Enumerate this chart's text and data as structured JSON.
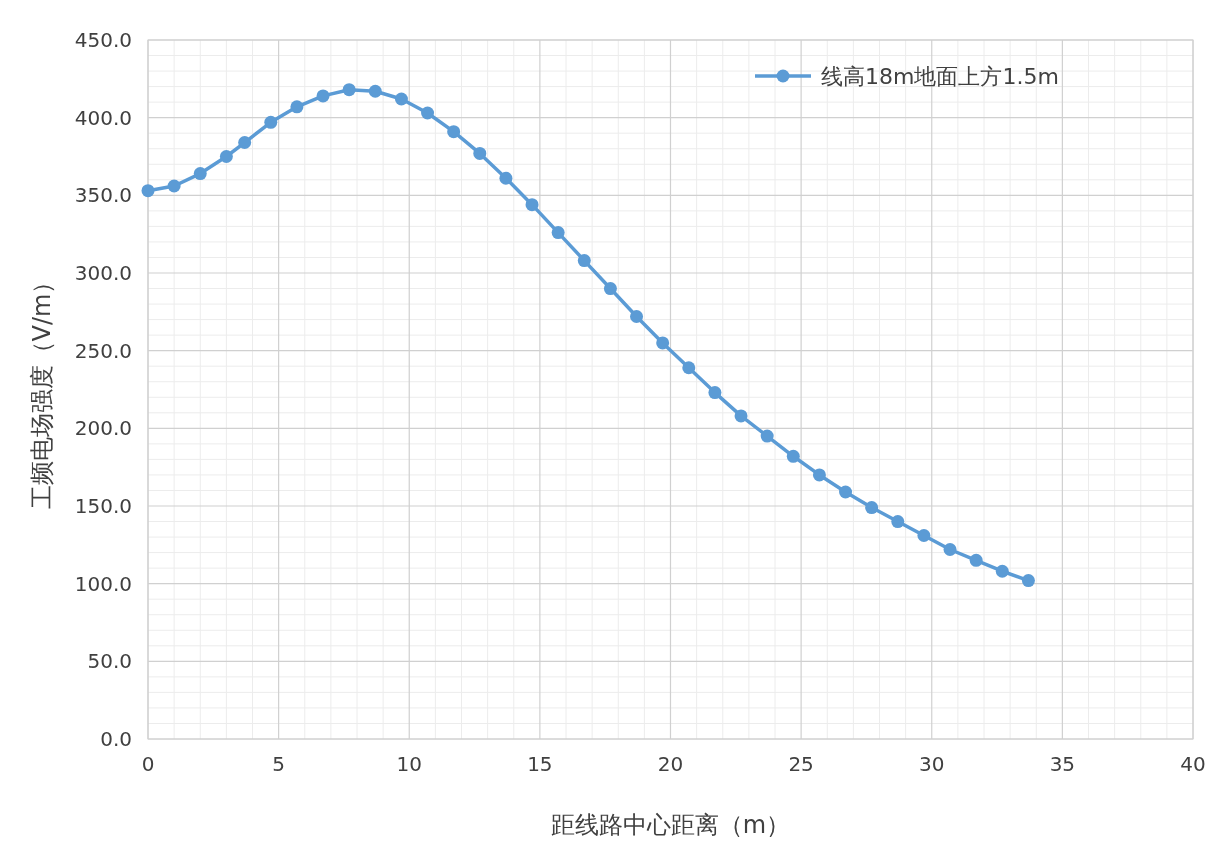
{
  "chart_data": {
    "type": "line",
    "xlabel": "距线路中心距离（m）",
    "ylabel": "工频电场强度（V/m）",
    "x": [
      0,
      1,
      2,
      3,
      3.7,
      4.7,
      5.7,
      6.7,
      7.7,
      8.7,
      9.7,
      10.7,
      11.7,
      12.7,
      13.7,
      14.7,
      15.7,
      16.7,
      17.7,
      18.7,
      19.7,
      20.7,
      21.7,
      22.7,
      23.7,
      24.7,
      25.7,
      26.7,
      27.7,
      28.7,
      29.7,
      30.7,
      31.7,
      32.7,
      33.7
    ],
    "series": [
      {
        "name": "线高18m地面上方1.5m",
        "color": "#5b9bd5",
        "values": [
          353,
          356,
          364,
          375,
          384,
          397,
          407,
          414,
          418,
          417,
          412,
          403,
          391,
          377,
          361,
          344,
          326,
          308,
          290,
          272,
          255,
          239,
          223,
          208,
          195,
          182,
          170,
          159,
          149,
          140,
          131,
          122,
          115,
          108,
          102
        ]
      }
    ],
    "xlim": [
      0,
      40
    ],
    "xticks": [
      0,
      5,
      10,
      15,
      20,
      25,
      30,
      35,
      40
    ],
    "ylim": [
      0,
      450
    ],
    "yticks": [
      {
        "value": 0,
        "label": "0.0"
      },
      {
        "value": 50,
        "label": "50.0"
      },
      {
        "value": 100,
        "label": "100.0"
      },
      {
        "value": 150,
        "label": "150.0"
      },
      {
        "value": 200,
        "label": "200.0"
      },
      {
        "value": 250,
        "label": "250.0"
      },
      {
        "value": 300,
        "label": "300.0"
      },
      {
        "value": 350,
        "label": "350.0"
      },
      {
        "value": 400,
        "label": "400.0"
      },
      {
        "value": 450,
        "label": "450.0"
      }
    ],
    "grid": true,
    "legend": "top right",
    "marker": "circle",
    "line_style": "solid"
  }
}
